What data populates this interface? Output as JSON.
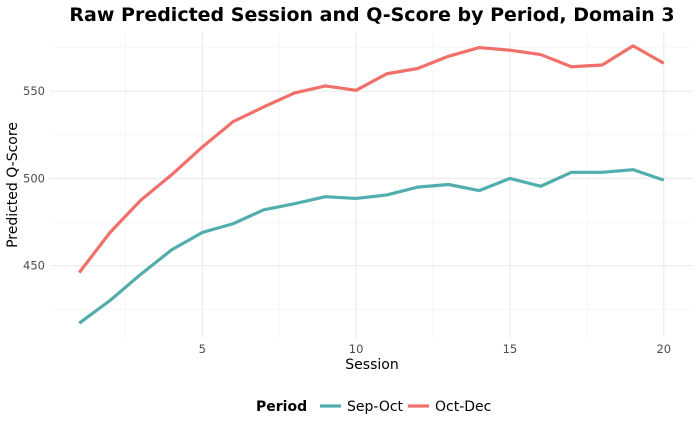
{
  "chart_data": {
    "type": "line",
    "title": "Raw Predicted Session and Q-Score by Period, Domain 3",
    "xlabel": "Session",
    "ylabel": "Predicted Q-Score",
    "x": [
      1,
      2,
      3,
      4,
      5,
      6,
      7,
      8,
      9,
      10,
      11,
      12,
      13,
      14,
      15,
      16,
      17,
      18,
      19,
      20
    ],
    "xlim": [
      0.05,
      20.95
    ],
    "ylim": [
      408.5,
      584.5
    ],
    "xticks": [
      5,
      10,
      15,
      20
    ],
    "yticks": [
      450,
      500,
      550
    ],
    "grid": true,
    "legend": {
      "title": "Period",
      "position": "bottom"
    },
    "series": [
      {
        "name": "Sep-Oct",
        "color": "#52aeae",
        "values": [
          417,
          430,
          445,
          459,
          469,
          474,
          482,
          485.5,
          489.5,
          488.5,
          490.5,
          495,
          496.5,
          493,
          500,
          495.5,
          503.5,
          503.5,
          505,
          499
        ]
      },
      {
        "name": "Oct-Dec",
        "color": "#f1706a",
        "values": [
          446,
          469,
          487.5,
          502,
          518,
          532.5,
          541,
          549,
          553,
          550.5,
          560,
          563,
          570,
          575,
          573.5,
          571,
          564,
          565,
          576,
          566
        ]
      }
    ]
  }
}
